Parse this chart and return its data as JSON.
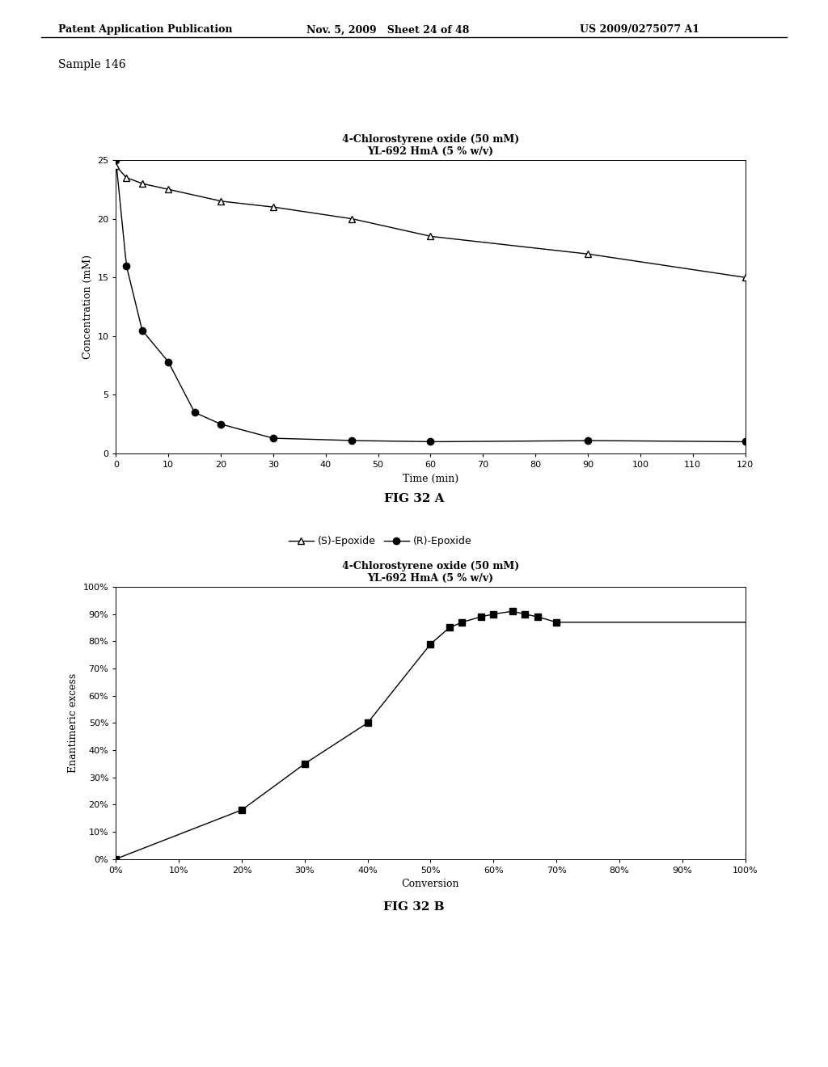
{
  "header_left": "Patent Application Publication",
  "header_mid": "Nov. 5, 2009   Sheet 24 of 48",
  "header_right": "US 2009/0275077 A1",
  "sample_label": "Sample 146",
  "fig_a": {
    "title_line1": "4-Chlorostyrene oxide (50 mM)",
    "title_line2": "YL-692 HmA (5 % w/v)",
    "xlabel": "Time (min)",
    "ylabel": "Concentration (mM)",
    "xlim": [
      0,
      120
    ],
    "ylim": [
      0,
      25
    ],
    "xticks": [
      0,
      10,
      20,
      30,
      40,
      50,
      60,
      70,
      80,
      90,
      100,
      110,
      120
    ],
    "yticks": [
      0,
      5,
      10,
      15,
      20,
      25
    ],
    "s_epoxide_time": [
      0,
      2,
      5,
      10,
      20,
      30,
      45,
      60,
      90,
      120
    ],
    "s_epoxide_conc": [
      24.5,
      23.5,
      23.0,
      22.5,
      21.5,
      21.0,
      20.0,
      18.5,
      17.0,
      15.0
    ],
    "r_epoxide_time": [
      0,
      2,
      5,
      10,
      15,
      20,
      30,
      45,
      60,
      90,
      120
    ],
    "r_epoxide_conc": [
      25.0,
      16.0,
      10.5,
      7.8,
      3.5,
      2.5,
      1.3,
      1.1,
      1.0,
      1.1,
      1.0
    ],
    "fig_label": "FIG 32 A"
  },
  "fig_b": {
    "title_line1": "4-Chlorostyrene oxide (50 mM)",
    "title_line2": "YL-692 HmA (5 % w/v)",
    "xlabel": "Conversion",
    "ylabel": "Enantimeric excess",
    "xlim": [
      0,
      1.0
    ],
    "ylim": [
      0,
      1.0
    ],
    "xticks": [
      0.0,
      0.1,
      0.2,
      0.3,
      0.4,
      0.5,
      0.6,
      0.7,
      0.8,
      0.9,
      1.0
    ],
    "yticks": [
      0.0,
      0.1,
      0.2,
      0.3,
      0.4,
      0.5,
      0.6,
      0.7,
      0.8,
      0.9,
      1.0
    ],
    "conv_x": [
      0.0,
      0.2,
      0.3,
      0.4,
      0.5,
      0.53,
      0.55,
      0.58,
      0.6,
      0.63,
      0.65,
      0.67,
      0.7
    ],
    "ee_y": [
      0.0,
      0.18,
      0.35,
      0.5,
      0.79,
      0.85,
      0.87,
      0.89,
      0.9,
      0.91,
      0.9,
      0.89,
      0.87
    ],
    "fig_label": "FIG 32 B"
  },
  "bg_color": "#ffffff",
  "line_color": "#000000"
}
